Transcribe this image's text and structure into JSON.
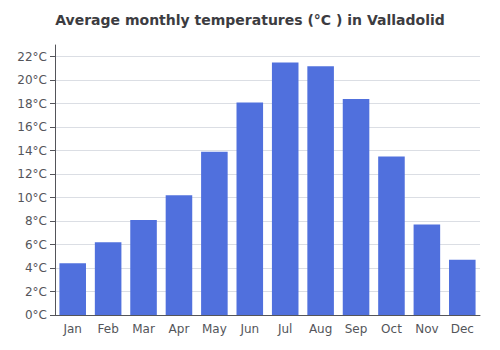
{
  "chart_data": {
    "type": "bar",
    "title": "Average monthly temperatures (°C ) in Valladolid",
    "categories": [
      "Jan",
      "Feb",
      "Mar",
      "Apr",
      "May",
      "Jun",
      "Jul",
      "Aug",
      "Sep",
      "Oct",
      "Nov",
      "Dec"
    ],
    "values": [
      4.4,
      6.2,
      8.1,
      10.2,
      13.9,
      18.1,
      21.5,
      21.2,
      18.4,
      13.5,
      7.7,
      4.7
    ],
    "ylim": [
      0,
      23
    ],
    "yticks": [
      {
        "value": 0,
        "label": "0°C"
      },
      {
        "value": 2,
        "label": "2°C"
      },
      {
        "value": 4,
        "label": "4°C"
      },
      {
        "value": 6,
        "label": "6°C"
      },
      {
        "value": 8,
        "label": "8°C"
      },
      {
        "value": 10,
        "label": "10°C"
      },
      {
        "value": 12,
        "label": "12°C"
      },
      {
        "value": 14,
        "label": "14°C"
      },
      {
        "value": 16,
        "label": "16°C"
      },
      {
        "value": 18,
        "label": "18°C"
      },
      {
        "value": 20,
        "label": "20°C"
      },
      {
        "value": 22,
        "label": "22°C"
      }
    ],
    "grid": true
  }
}
